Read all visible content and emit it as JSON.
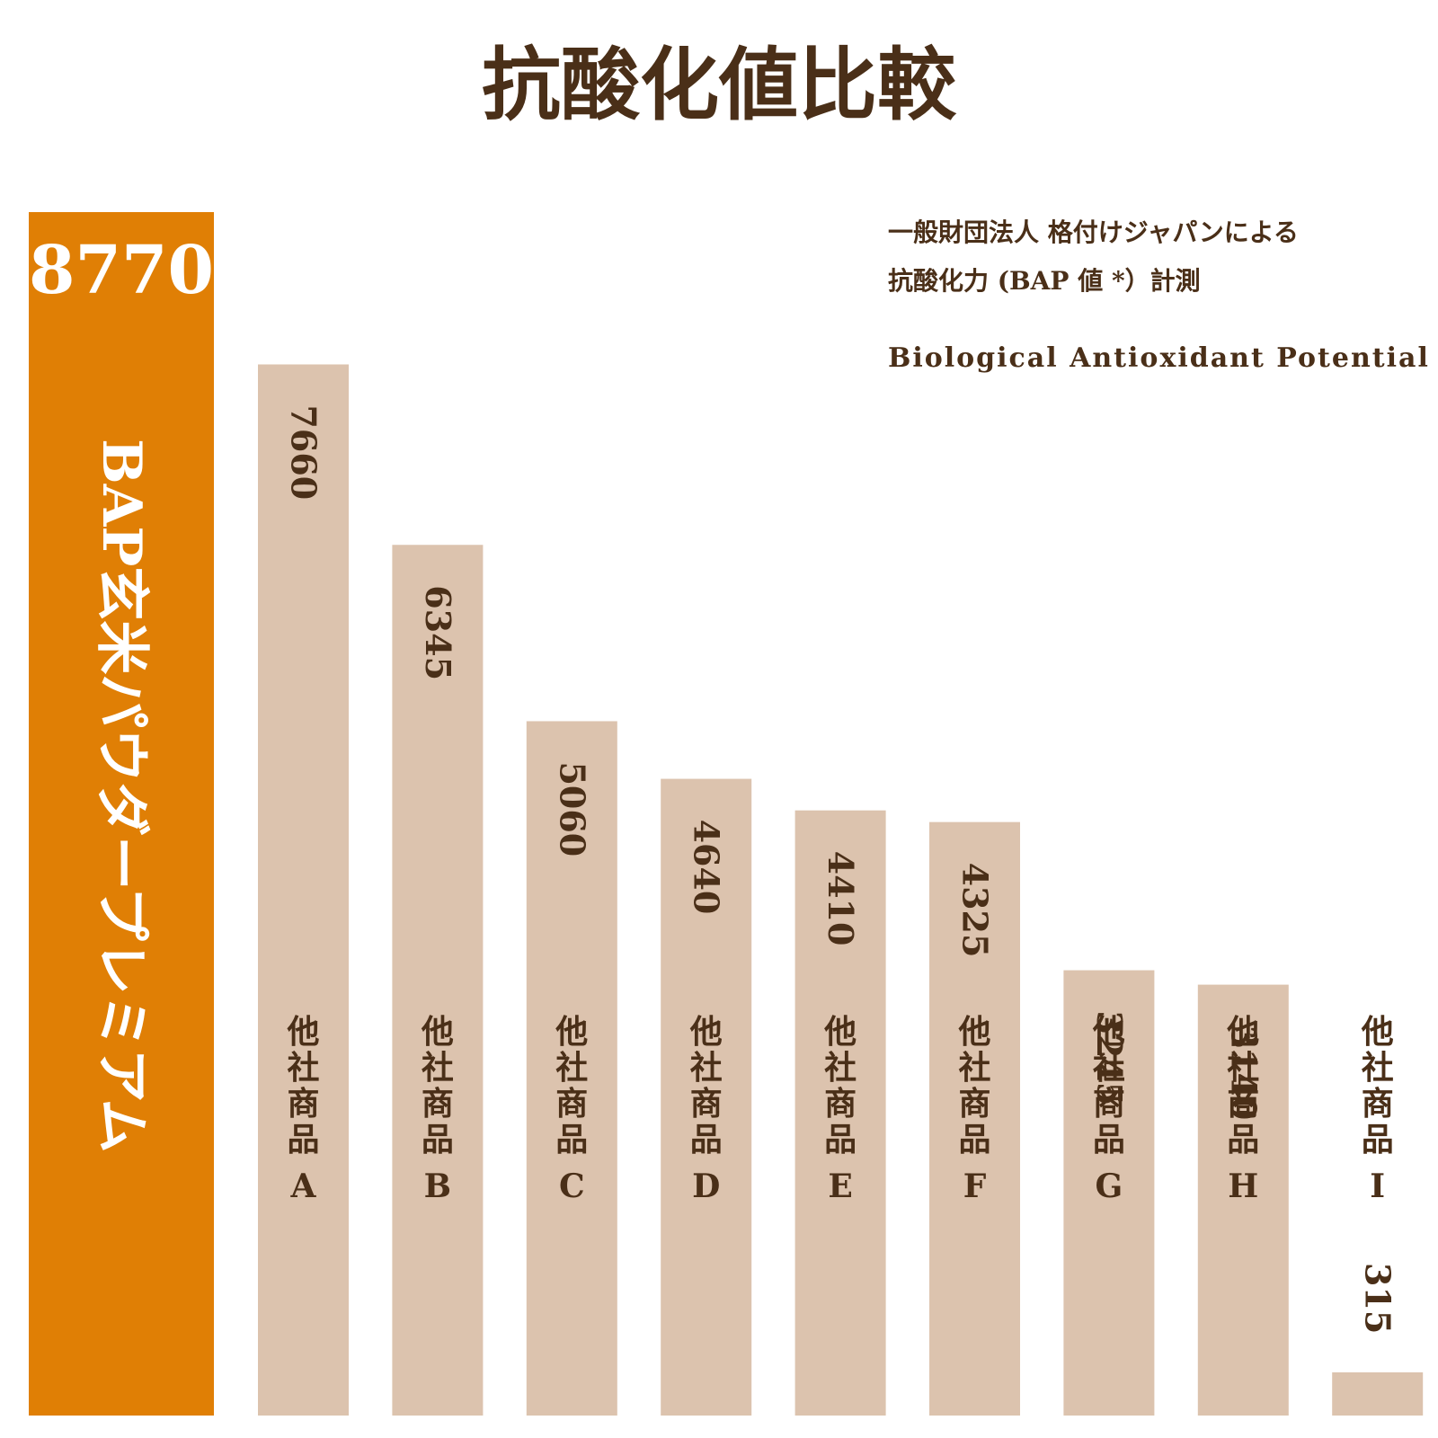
{
  "colors": {
    "highlight": "#e07f05",
    "bar": "#dcc3ae",
    "text": "#4a2f18",
    "white": "#ffffff"
  },
  "chart_data": {
    "type": "bar",
    "title": "抗酸化値比較",
    "notes": [
      "一般財団法人 格付けジャパンによる",
      "抗酸化力 (BAP 値 *）計測",
      "Biological Antioxidant Potential"
    ],
    "xlabel": "",
    "ylabel": "",
    "ylim": [
      0,
      8770
    ],
    "grid": false,
    "categories": [
      "BAP玄米パウダープレミアム",
      "他社商品A",
      "他社商品B",
      "他社商品C",
      "他社商品D",
      "他社商品E",
      "他社商品F",
      "他社商品G",
      "他社商品H",
      "他社商品I"
    ],
    "values": [
      8770,
      7660,
      6345,
      5060,
      4640,
      4410,
      4325,
      3245,
      3140,
      315
    ],
    "value_labels": [
      "8770",
      "7660",
      "6345",
      "5060",
      "4640",
      "4410",
      "4325",
      "3245",
      "3140",
      "315"
    ],
    "highlight_index": 0
  }
}
